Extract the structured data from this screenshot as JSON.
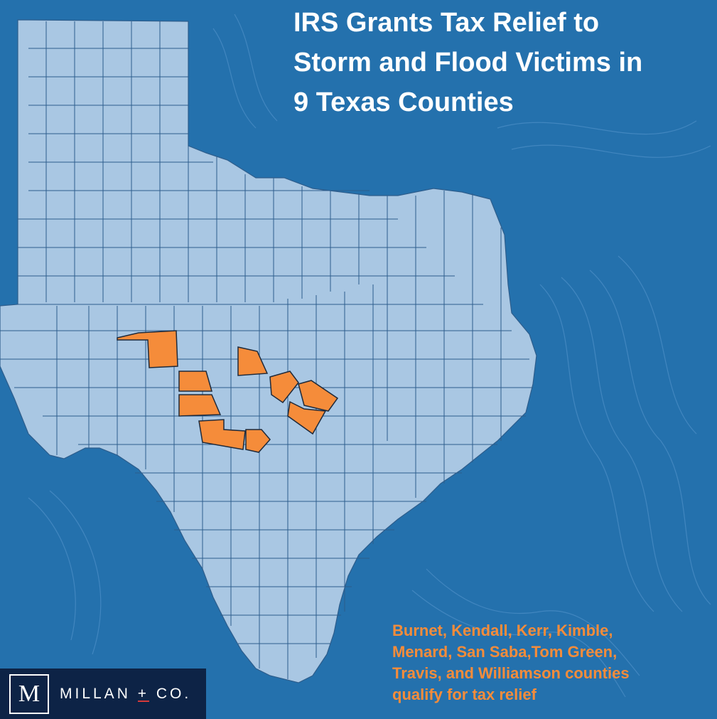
{
  "title": {
    "lines": [
      "IRS Grants Tax Relief to",
      "Storm and Flood Victims in",
      "9 Texas Counties"
    ]
  },
  "caption": {
    "lines": [
      "Burnet, Kendall, Kerr, Kimble,",
      "Menard, San Saba,Tom Green,",
      "Travis, and Williamson counties",
      "qualify for tax relief"
    ]
  },
  "logo": {
    "mark": "M",
    "name_left": "MILLAN",
    "plus": "+",
    "name_right": "CO."
  },
  "map": {
    "region": "Texas",
    "highlighted_counties": [
      "Tom Green",
      "San Saba",
      "Burnet",
      "Williamson",
      "Travis",
      "Menard",
      "Kimble",
      "Kerr",
      "Kendall"
    ],
    "colors": {
      "ocean": "#2471ad",
      "land": "#a9c7e3",
      "county_border": "#2d5d8c",
      "highlight": "#f58c3a",
      "highlight_border": "#1f2a3a",
      "contour": "#5a98cf"
    }
  }
}
